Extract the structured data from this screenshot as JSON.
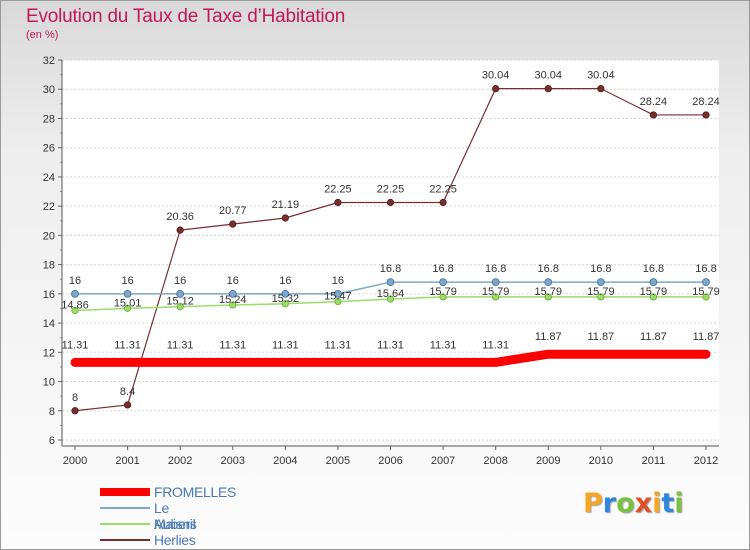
{
  "header": {
    "title": "Evolution du Taux de Taxe d’Habitation",
    "subtitle": "(en %)"
  },
  "logo": {
    "letters": [
      "P",
      "r",
      "o",
      "x",
      "i",
      "t",
      "i"
    ],
    "colors": [
      "#f5a623",
      "#2e86de",
      "#7ac142",
      "#e2502a",
      "#f5a623",
      "#2e86de",
      "#7ac142"
    ]
  },
  "chart_data": {
    "type": "line",
    "x": [
      "2000",
      "2001",
      "2002",
      "2003",
      "2004",
      "2005",
      "2006",
      "2007",
      "2008",
      "2009",
      "2010",
      "2011",
      "2012"
    ],
    "ylim": [
      6,
      32
    ],
    "yticks": [
      "6",
      "8",
      "10",
      "12",
      "14",
      "16",
      "18",
      "20",
      "22",
      "24",
      "26",
      "28",
      "30",
      "32"
    ],
    "grid": "horizontal",
    "legend_position": "bottom-left",
    "series": [
      {
        "name": "FROMELLES",
        "color": "#ff0000",
        "values": [
          11.31,
          11.31,
          11.31,
          11.31,
          11.31,
          11.31,
          11.31,
          11.31,
          11.31,
          11.87,
          11.87,
          11.87,
          11.87
        ],
        "labels": [
          "11.31",
          "11.31",
          "11.31",
          "11.31",
          "11.31",
          "11.31",
          "11.31",
          "11.31",
          "11.31",
          "11.87",
          "11.87",
          "11.87",
          "11.87"
        ]
      },
      {
        "name": "Le Maisnil",
        "color": "#7ea6c9",
        "values": [
          16,
          16,
          16,
          16,
          16,
          16,
          16.8,
          16.8,
          16.8,
          16.8,
          16.8,
          16.8,
          16.8
        ],
        "labels": [
          "16",
          "16",
          "16",
          "16",
          "16",
          "16",
          "16.8",
          "16.8",
          "16.8",
          "16.8",
          "16.8",
          "16.8",
          "16.8"
        ]
      },
      {
        "name": "Aubers",
        "color": "#99dd66",
        "values": [
          14.86,
          15.01,
          15.12,
          15.24,
          15.32,
          15.47,
          15.64,
          15.79,
          15.79,
          15.79,
          15.79,
          15.79,
          15.79
        ],
        "labels": [
          "14.86",
          "15.01",
          "15.12",
          "15.24",
          "15.32",
          "15.47",
          "15.64",
          "15.79",
          "15.79",
          "15.79",
          "15.79",
          "15.79",
          "15.79"
        ]
      },
      {
        "name": "Herlies",
        "color": "#7a2e2e",
        "values": [
          8,
          8.4,
          20.36,
          20.77,
          21.19,
          22.25,
          22.25,
          22.25,
          30.04,
          30.04,
          30.04,
          28.24,
          28.24
        ],
        "labels": [
          "8",
          "8.4",
          "20.36",
          "20.77",
          "21.19",
          "22.25",
          "22.25",
          "22.25",
          "30.04",
          "30.04",
          "30.04",
          "28.24",
          "28.24"
        ]
      }
    ]
  }
}
